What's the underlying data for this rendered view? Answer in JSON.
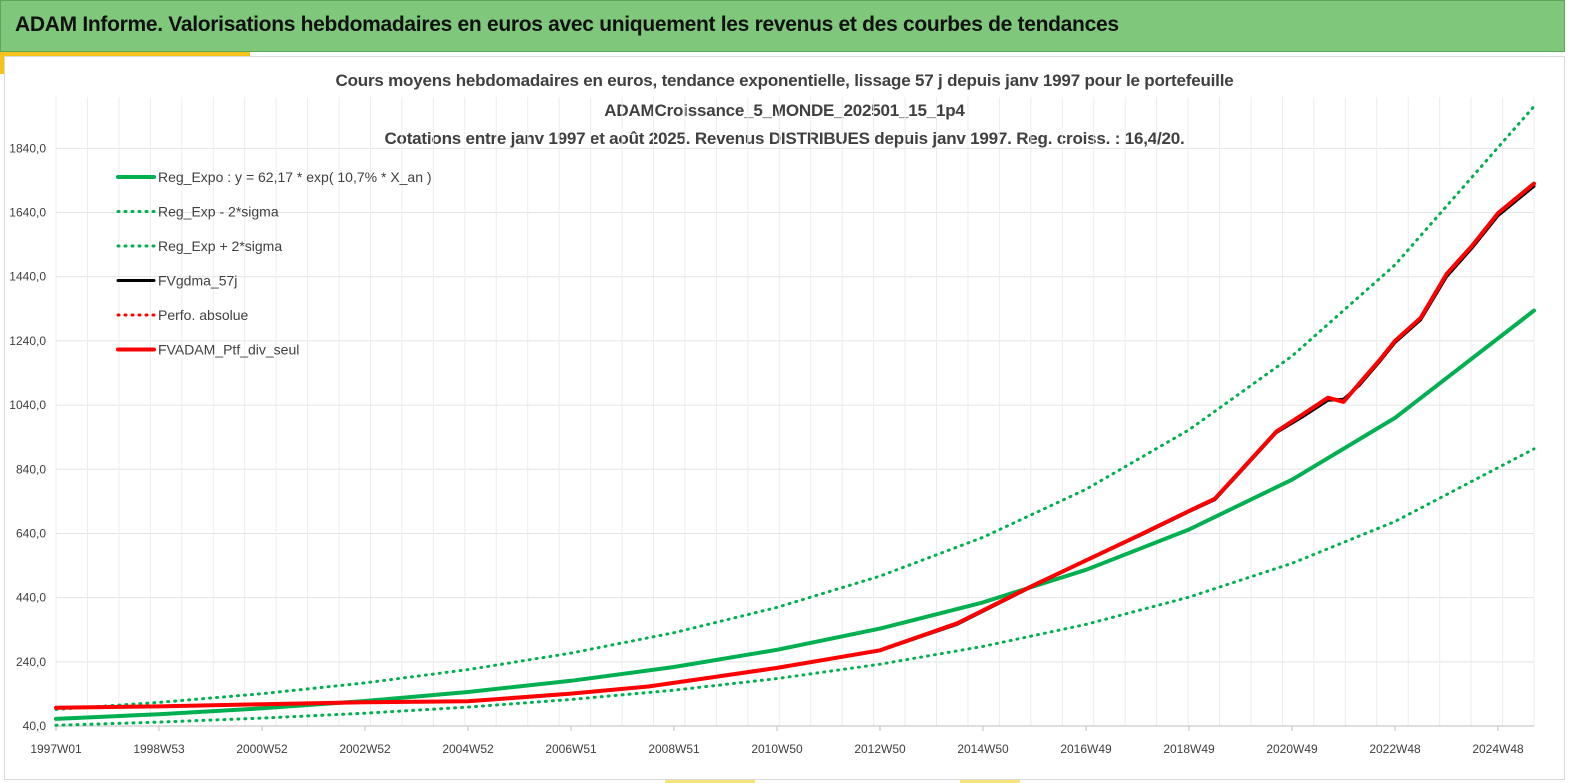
{
  "header": {
    "title": "ADAM Informe. Valorisations hebdomadaires en euros avec uniquement les revenus et des courbes de tendances",
    "background": "#7ec77b"
  },
  "chart_data": {
    "type": "line",
    "title_lines": [
      "Cours moyens hebdomadaires  en euros, tendance exponentielle, lissage 57 j depuis janv 1997 pour le portefeuille",
      "ADAMCroissance_5_MONDE_202501_15_1p4",
      "Cotations  entre janv 1997 et août 2025. Revenus DISTRIBUES depuis janv 1997. Reg. croiss. : 16,4/20."
    ],
    "xlabel": "",
    "ylabel": "",
    "x_ticks": [
      "1997W01",
      "1998W53",
      "2000W52",
      "2002W52",
      "2004W52",
      "2006W51",
      "2008W51",
      "2010W50",
      "2012W50",
      "2014W50",
      "2016W49",
      "2018W49",
      "2020W49",
      "2022W48",
      "2024W48"
    ],
    "y_ticks": [
      "40,0",
      "240,0",
      "440,0",
      "640,0",
      "840,0",
      "1040,0",
      "1240,0",
      "1440,0",
      "1640,0",
      "1840,0"
    ],
    "ylim": [
      40,
      2000
    ],
    "xlim": [
      1997.0,
      2025.7
    ],
    "grid": true,
    "legend_position": "top-left",
    "series": [
      {
        "name": "Reg_Expo : y = 62,17 * exp( 10,7% *  X_an )",
        "color": "#00b050",
        "style": "solid",
        "width": 4,
        "x": [
          1997.0,
          1999.0,
          2001.0,
          2003.0,
          2005.0,
          2007.0,
          2009.0,
          2011.0,
          2013.0,
          2015.0,
          2017.0,
          2019.0,
          2021.0,
          2023.0,
          2025.7
        ],
        "y": [
          62.2,
          76.9,
          95.3,
          118.0,
          146.1,
          180.9,
          224.0,
          277.4,
          343.5,
          425.3,
          526.7,
          652.2,
          807.6,
          1000.0,
          1334.4
        ]
      },
      {
        "name": "Reg_Exp - 2*sigma",
        "color": "#00b050",
        "style": "dotted",
        "width": 3,
        "x": [
          1997.0,
          1999.0,
          2001.0,
          2003.0,
          2005.0,
          2007.0,
          2009.0,
          2011.0,
          2013.0,
          2015.0,
          2017.0,
          2019.0,
          2021.0,
          2023.0,
          2025.7
        ],
        "y": [
          42.1,
          52.1,
          64.5,
          79.9,
          98.9,
          122.5,
          151.7,
          187.8,
          232.6,
          288.0,
          356.6,
          441.6,
          546.9,
          677.2,
          903.6
        ]
      },
      {
        "name": "Reg_Exp + 2*sigma",
        "color": "#00b050",
        "style": "dotted",
        "width": 3,
        "x": [
          1997.0,
          1999.0,
          2001.0,
          2003.0,
          2005.0,
          2007.0,
          2009.0,
          2011.0,
          2013.0,
          2015.0,
          2017.0,
          2019.0,
          2021.0,
          2023.0,
          2025.7
        ],
        "y": [
          91.8,
          113.6,
          140.7,
          174.2,
          215.7,
          267.1,
          330.8,
          409.6,
          507.2,
          628.1,
          777.7,
          963.1,
          1192.6,
          1476.8,
          1970.6
        ]
      },
      {
        "name": "FVgdma_57j",
        "color": "#000000",
        "style": "solid",
        "width": 3,
        "x": [
          1997.0,
          1999.0,
          2001.0,
          2003.0,
          2005.0,
          2007.0,
          2008.5,
          2009.5,
          2011.0,
          2013.0,
          2014.5,
          2016.0,
          2017.0,
          2018.0,
          2019.0,
          2019.5,
          2020.0,
          2020.7,
          2021.2,
          2021.7,
          2022.0,
          2022.3,
          2022.7,
          2023.0,
          2023.5,
          2024.0,
          2024.5,
          2025.0,
          2025.7
        ],
        "y": [
          97.0,
          101.0,
          108.0,
          114.0,
          117.0,
          141.0,
          162.0,
          186.0,
          220.0,
          275.0,
          357.0,
          478.0,
          555.0,
          630.0,
          708.0,
          745.0,
          832.0,
          955.0,
          1003.0,
          1055.0,
          1058.0,
          1100.0,
          1175.0,
          1235.0,
          1306.0,
          1440.0,
          1530.0,
          1630.0,
          1722.0
        ]
      },
      {
        "name": "Perfo. absolue",
        "color": "#ff0000",
        "style": "dotted",
        "width": 3,
        "x": [],
        "y": []
      },
      {
        "name": "FVADAM_Ptf_div_seul",
        "color": "#ff0000",
        "style": "solid",
        "width": 4,
        "x": [
          1997.0,
          1999.0,
          2001.0,
          2003.0,
          2005.0,
          2007.0,
          2008.5,
          2009.5,
          2011.0,
          2013.0,
          2014.5,
          2016.0,
          2017.0,
          2018.0,
          2019.0,
          2019.5,
          2020.0,
          2020.7,
          2021.2,
          2021.7,
          2022.0,
          2022.3,
          2022.7,
          2023.0,
          2023.5,
          2024.0,
          2024.5,
          2025.0,
          2025.7
        ],
        "y": [
          97.0,
          101.0,
          108.0,
          114.0,
          117.0,
          141.0,
          163.0,
          186.0,
          221.0,
          276.0,
          360.0,
          480.0,
          556.0,
          632.0,
          710.0,
          748.0,
          835.0,
          958.0,
          1010.0,
          1063.0,
          1050.0,
          1106.0,
          1180.0,
          1240.0,
          1312.0,
          1448.0,
          1537.0,
          1638.0,
          1730.0
        ]
      }
    ]
  }
}
